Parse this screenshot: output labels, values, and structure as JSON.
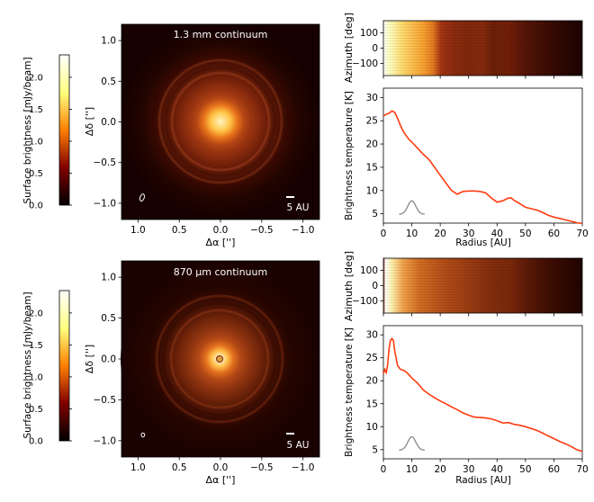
{
  "colorbar": {
    "label": "Surface brightness [mJy/beam]",
    "ticks": [
      "0.0",
      "0.5",
      "1.0",
      "1.5",
      "2.0"
    ],
    "tick_values": [
      0.0,
      0.5,
      1.0,
      1.5,
      2.0
    ],
    "range": [
      0,
      2.35
    ]
  },
  "panels": [
    {
      "id": "top",
      "image": {
        "title": "1.3 mm continuum",
        "xlabel": "Δα ['']",
        "ylabel": "Δδ ['']",
        "xticks": [
          "1.0",
          "0.5",
          "0.0",
          "−0.5",
          "−1.0"
        ],
        "xtick_values": [
          1.0,
          0.5,
          0.0,
          -0.5,
          -1.0
        ],
        "yticks": [
          "1.0",
          "0.5",
          "0.0",
          "−0.5",
          "−1.0"
        ],
        "ytick_values": [
          1.0,
          0.5,
          0.0,
          -0.5,
          -1.0
        ],
        "range": [
          1.2,
          -1.2
        ],
        "scalebar_label": "5 AU",
        "beam": {
          "x": 0.95,
          "y": -0.93,
          "rx": 0.025,
          "ry": 0.045,
          "angle": 20
        },
        "center_hole": false
      },
      "polar": {
        "ylabel": "Azimuth [deg]",
        "yticks": [
          "100",
          "0",
          "−100"
        ],
        "ytick_values": [
          100,
          0,
          -100
        ],
        "range": [
          -180,
          180
        ]
      },
      "profile": {
        "ylabel": "Brightness temperature [K]",
        "yticks": [
          "5",
          "10",
          "15",
          "20",
          "25",
          "30"
        ],
        "ytick_values": [
          5,
          10,
          15,
          20,
          25,
          30
        ],
        "ylim": [
          3,
          32
        ],
        "beam_profile": {
          "center": 10,
          "peak": 7.8,
          "base": 4.9,
          "half": 4.5
        }
      }
    },
    {
      "id": "bottom",
      "image": {
        "title": "870 μm continuum",
        "xlabel": "Δα ['']",
        "ylabel": "Δδ ['']",
        "xticks": [
          "1.0",
          "0.5",
          "0.0",
          "−0.5",
          "−1.0"
        ],
        "xtick_values": [
          1.0,
          0.5,
          0.0,
          -0.5,
          -1.0
        ],
        "yticks": [
          "1.0",
          "0.5",
          "0.0",
          "−0.5",
          "−1.0"
        ],
        "ytick_values": [
          1.0,
          0.5,
          0.0,
          -0.5,
          -1.0
        ],
        "range": [
          1.2,
          -1.2
        ],
        "scalebar_label": "5 AU",
        "beam": {
          "x": 0.94,
          "y": -0.93,
          "rx": 0.02,
          "ry": 0.025,
          "angle": 0
        },
        "center_hole": true
      },
      "polar": {
        "ylabel": "Azimuth [deg]",
        "yticks": [
          "100",
          "0",
          "−100"
        ],
        "ytick_values": [
          100,
          0,
          -100
        ],
        "range": [
          -180,
          180
        ]
      },
      "profile": {
        "ylabel": "Brightness temperature [K]",
        "xlabel": "Radius [AU]",
        "yticks": [
          "5",
          "10",
          "15",
          "20",
          "25",
          "30"
        ],
        "ytick_values": [
          5,
          10,
          15,
          20,
          25,
          30
        ],
        "ylim": [
          3,
          32
        ],
        "beam_profile": {
          "center": 10,
          "peak": 7.8,
          "base": 4.9,
          "half": 4.5
        }
      }
    }
  ],
  "chart_data": [
    {
      "type": "line",
      "xlabel": "Radius [AU]",
      "ylabel": "Brightness temperature [K]",
      "xlim": [
        0,
        70
      ],
      "ylim": [
        3,
        32
      ],
      "xticks": [
        0,
        10,
        20,
        30,
        40,
        50,
        60,
        70
      ],
      "series": [
        {
          "color": "#ff3b10",
          "x": [
            0,
            1,
            2,
            3,
            4,
            5,
            6,
            7,
            8,
            9,
            10,
            12,
            14,
            16,
            18,
            20,
            22,
            24,
            26,
            28,
            30,
            32,
            34,
            36,
            38,
            40,
            42,
            44,
            45,
            46,
            48,
            50,
            52,
            54,
            56,
            58,
            60,
            62,
            64,
            66,
            68,
            70
          ],
          "y": [
            26.0,
            26.4,
            26.6,
            27.1,
            26.8,
            25.5,
            24.0,
            22.7,
            21.8,
            21.0,
            20.4,
            19.1,
            17.8,
            16.7,
            15.0,
            13.3,
            11.6,
            10.0,
            9.2,
            9.8,
            9.9,
            9.9,
            9.8,
            9.5,
            8.4,
            7.5,
            7.8,
            8.4,
            8.4,
            7.9,
            7.2,
            6.4,
            6.1,
            5.8,
            5.3,
            4.7,
            4.3,
            4.0,
            3.7,
            3.4,
            3.1,
            2.9
          ]
        }
      ]
    },
    {
      "type": "line",
      "xlabel": "Radius [AU]",
      "ylabel": "Brightness temperature [K]",
      "xlim": [
        0,
        70
      ],
      "ylim": [
        3,
        32
      ],
      "xticks": [
        0,
        10,
        20,
        30,
        40,
        50,
        60,
        70
      ],
      "series": [
        {
          "color": "#ff3b10",
          "x": [
            0,
            0.5,
            1,
            1.5,
            2,
            2.5,
            3,
            3.5,
            4,
            5,
            6,
            7,
            8,
            9,
            10,
            12,
            14,
            16,
            18,
            20,
            22,
            24,
            26,
            28,
            30,
            32,
            34,
            36,
            38,
            40,
            42,
            44,
            45,
            46,
            48,
            50,
            52,
            54,
            56,
            58,
            60,
            62,
            64,
            66,
            68,
            70
          ],
          "y": [
            21.5,
            22.5,
            21.8,
            23.5,
            27.0,
            28.8,
            29.2,
            28.8,
            26.5,
            23.3,
            22.5,
            22.3,
            21.9,
            21.3,
            20.6,
            19.5,
            18.0,
            17.1,
            16.3,
            15.6,
            15.0,
            14.3,
            13.7,
            13.0,
            12.5,
            12.1,
            12.0,
            11.9,
            11.7,
            11.3,
            10.8,
            10.9,
            10.7,
            10.5,
            10.3,
            10.0,
            9.6,
            9.2,
            8.6,
            8.0,
            7.4,
            6.8,
            6.3,
            5.7,
            5.0,
            4.6
          ]
        }
      ]
    }
  ]
}
